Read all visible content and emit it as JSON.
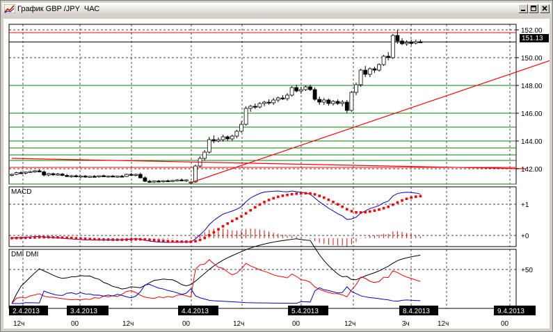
{
  "window": {
    "title": "График GBP /JPY  ЧАС",
    "minimize_label": "_",
    "maximize_label": "□",
    "close_label": "×"
  },
  "price_panel": {
    "y_ticks": [
      "152.00",
      "150.00",
      "148.00",
      "146.00",
      "144.00",
      "142.00"
    ],
    "current_price": "151.13",
    "y_range": [
      140.9,
      152.4
    ],
    "current_price_value": 151.13,
    "support_resistance_green": [
      148.0,
      146.0,
      145.0,
      144.0,
      143.5,
      143.0,
      142.6,
      140.9
    ],
    "red_levels": [
      151.8,
      142.1
    ],
    "trendlines": [
      {
        "from": {
          "bar": 0,
          "price": 142.75
        },
        "to": {
          "bar": 112,
          "price": 142.0
        }
      },
      {
        "from": {
          "bar": 39,
          "price": 141.0
        },
        "to": {
          "bar": 136,
          "price": 151.9
        }
      }
    ],
    "ohlc": [
      [
        141.55,
        141.66,
        141.45,
        141.6
      ],
      [
        141.6,
        141.78,
        141.55,
        141.72
      ],
      [
        141.72,
        141.82,
        141.62,
        141.7
      ],
      [
        141.7,
        141.8,
        141.6,
        141.76
      ],
      [
        141.76,
        141.86,
        141.7,
        141.8
      ],
      [
        141.8,
        141.9,
        141.72,
        141.85
      ],
      [
        141.85,
        141.95,
        141.75,
        141.78
      ],
      [
        141.78,
        141.88,
        141.45,
        141.55
      ],
      [
        141.55,
        141.7,
        141.46,
        141.65
      ],
      [
        141.65,
        141.72,
        141.5,
        141.56
      ],
      [
        141.56,
        141.7,
        141.5,
        141.62
      ],
      [
        141.62,
        141.7,
        141.48,
        141.52
      ],
      [
        141.52,
        141.62,
        141.4,
        141.46
      ],
      [
        141.46,
        141.56,
        141.36,
        141.5
      ],
      [
        141.5,
        141.58,
        141.38,
        141.42
      ],
      [
        141.42,
        141.52,
        141.32,
        141.48
      ],
      [
        141.48,
        141.55,
        141.36,
        141.4
      ],
      [
        141.4,
        141.5,
        141.34,
        141.46
      ],
      [
        141.46,
        141.55,
        141.38,
        141.42
      ],
      [
        141.42,
        141.52,
        141.36,
        141.5
      ],
      [
        141.5,
        141.58,
        141.4,
        141.44
      ],
      [
        141.44,
        141.52,
        141.36,
        141.48
      ],
      [
        141.48,
        141.56,
        141.4,
        141.43
      ],
      [
        141.43,
        141.5,
        141.35,
        141.47
      ],
      [
        141.47,
        141.56,
        141.4,
        141.45
      ],
      [
        141.45,
        141.65,
        141.4,
        141.6
      ],
      [
        141.6,
        141.7,
        141.5,
        141.55
      ],
      [
        141.55,
        141.65,
        141.45,
        141.6
      ],
      [
        141.6,
        141.72,
        141.3,
        141.35
      ],
      [
        141.35,
        141.45,
        141.05,
        141.1
      ],
      [
        141.1,
        141.2,
        140.98,
        141.05
      ],
      [
        141.05,
        141.15,
        140.98,
        141.12
      ],
      [
        141.12,
        141.2,
        141.02,
        141.08
      ],
      [
        141.08,
        141.18,
        141.0,
        141.14
      ],
      [
        141.14,
        141.22,
        141.05,
        141.1
      ],
      [
        141.1,
        141.2,
        141.04,
        141.16
      ],
      [
        141.16,
        141.26,
        141.08,
        141.2
      ],
      [
        141.2,
        141.3,
        141.1,
        141.15
      ],
      [
        141.15,
        141.25,
        141.05,
        141.2
      ],
      [
        141.0,
        141.1,
        140.9,
        141.05
      ],
      [
        141.05,
        142.3,
        141.0,
        142.2
      ],
      [
        142.2,
        142.9,
        142.1,
        142.75
      ],
      [
        142.75,
        143.35,
        142.6,
        143.2
      ],
      [
        143.2,
        144.3,
        143.1,
        144.1
      ],
      [
        144.1,
        144.4,
        143.85,
        144.0
      ],
      [
        144.0,
        144.25,
        143.9,
        144.1
      ],
      [
        144.1,
        144.45,
        143.95,
        144.3
      ],
      [
        144.3,
        144.4,
        144.0,
        144.15
      ],
      [
        144.15,
        144.45,
        144.0,
        144.35
      ],
      [
        144.35,
        144.8,
        144.2,
        144.7
      ],
      [
        144.7,
        145.4,
        144.6,
        145.2
      ],
      [
        145.2,
        146.5,
        145.1,
        146.35
      ],
      [
        146.35,
        146.6,
        146.1,
        146.5
      ],
      [
        146.5,
        146.7,
        146.3,
        146.45
      ],
      [
        146.45,
        146.8,
        146.35,
        146.7
      ],
      [
        146.7,
        146.9,
        146.5,
        146.8
      ],
      [
        146.8,
        147.0,
        146.6,
        146.75
      ],
      [
        146.75,
        147.1,
        146.6,
        146.95
      ],
      [
        146.95,
        147.2,
        146.8,
        147.1
      ],
      [
        147.1,
        147.3,
        146.95,
        147.05
      ],
      [
        147.05,
        147.45,
        146.9,
        147.3
      ],
      [
        147.3,
        147.95,
        147.2,
        147.85
      ],
      [
        147.85,
        148.05,
        147.5,
        147.6
      ],
      [
        147.6,
        147.9,
        147.4,
        147.7
      ],
      [
        147.7,
        148.0,
        147.6,
        147.9
      ],
      [
        147.9,
        148.05,
        147.6,
        147.7
      ],
      [
        147.7,
        147.85,
        146.9,
        147.0
      ],
      [
        147.0,
        147.2,
        146.6,
        146.8
      ],
      [
        146.8,
        147.1,
        146.6,
        146.95
      ],
      [
        146.95,
        147.05,
        146.55,
        146.7
      ],
      [
        146.7,
        146.95,
        146.55,
        146.85
      ],
      [
        146.85,
        147.0,
        146.6,
        146.7
      ],
      [
        146.7,
        146.95,
        146.5,
        146.8
      ],
      [
        146.8,
        146.95,
        146.0,
        146.2
      ],
      [
        146.2,
        147.6,
        146.1,
        147.5
      ],
      [
        147.5,
        148.2,
        147.3,
        148.05
      ],
      [
        148.05,
        149.2,
        147.9,
        149.1
      ],
      [
        149.1,
        149.4,
        148.6,
        148.8
      ],
      [
        148.8,
        149.3,
        148.6,
        149.2
      ],
      [
        149.2,
        149.35,
        148.9,
        149.1
      ],
      [
        149.1,
        149.6,
        149.0,
        149.5
      ],
      [
        149.5,
        150.2,
        149.4,
        150.1
      ],
      [
        150.1,
        150.4,
        149.8,
        150.0
      ],
      [
        150.0,
        151.7,
        149.9,
        151.6
      ],
      [
        151.6,
        152.0,
        151.0,
        151.2
      ],
      [
        151.2,
        151.4,
        150.9,
        151.0
      ],
      [
        151.0,
        151.25,
        150.85,
        151.1
      ],
      [
        151.1,
        151.3,
        150.9,
        151.05
      ],
      [
        151.05,
        151.3,
        150.95,
        151.15
      ],
      [
        151.15,
        151.3,
        151.05,
        151.13
      ]
    ]
  },
  "macd_panel": {
    "title": "MACD",
    "y_ticks": [
      "+1",
      "+0"
    ]
  },
  "dmi_panel": {
    "title": "DMI  DMI",
    "y_ticks": [
      "+50"
    ]
  },
  "x_axis": {
    "time_labels": [
      "12ч",
      "00",
      "12ч",
      "00",
      "12ч",
      "00",
      "12ч",
      "3ч",
      "12ч",
      "00"
    ],
    "date_labels": [
      "2.4.2013",
      "3.4.2013",
      "4.4.2013",
      "5.4.2013",
      "8.4.2013",
      "9.4.2013"
    ]
  },
  "colors": {
    "candle": "#000000",
    "green_level": "#008000",
    "red_level": "#ff0000",
    "trendline": "#ff0000",
    "macd_line": "#0000cc",
    "macd_signal": "#ff0000",
    "macd_hist": "#ff0000",
    "adx": "#000000",
    "plus_di": "#ff0000",
    "minus_di": "#0000cc",
    "label_bg": "#000000"
  }
}
